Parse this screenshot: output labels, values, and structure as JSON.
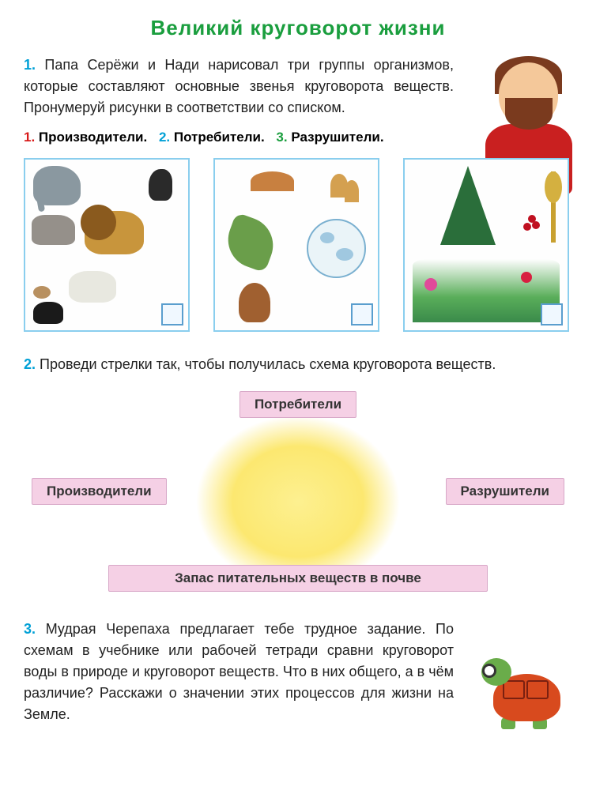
{
  "title": "Великий круговорот жизни",
  "task1": {
    "num": "1.",
    "text": "Папа Серёжи и Нади нарисовал три группы организмов, которые составляют основные звенья круговорота веществ. Пронумеруй рисунки в соответствии со списком."
  },
  "legend": {
    "i1": {
      "num": "1.",
      "label": "Производители.",
      "color": "#d81b1a"
    },
    "i2": {
      "num": "2.",
      "label": "Потребители.",
      "color": "#00a0d6"
    },
    "i3": {
      "num": "3.",
      "label": "Разрушители.",
      "color": "#1a9e3e"
    }
  },
  "cards": {
    "border_color": "#8aceee",
    "box_border": "#5a9ece",
    "c1_desc": "animals-consumers",
    "c2_desc": "fungi-decomposers",
    "c3_desc": "plants-producers"
  },
  "task2": {
    "num": "2.",
    "text": "Проведи стрелки так, чтобы получилась схема круговорота веществ."
  },
  "diagram": {
    "label_bg": "#f5d0e5",
    "label_border": "#d8a8c8",
    "sun_color": "#fce870",
    "top": "Потребители",
    "left": "Производители",
    "right": "Разрушители",
    "bottom": "Запас питательных веществ в почве"
  },
  "task3": {
    "num": "3.",
    "text": "Мудрая Черепаха предлагает тебе трудное задание. По схемам в учебнике или рабочей тетради сравни круговорот воды в природе и круговорот веществ. Что в них общего, а в чём различие? Расскажи о значении этих процессов для жизни на Земле."
  },
  "colors": {
    "title": "#1a9e3e",
    "task_num": "#00a0d6",
    "text": "#222222"
  }
}
